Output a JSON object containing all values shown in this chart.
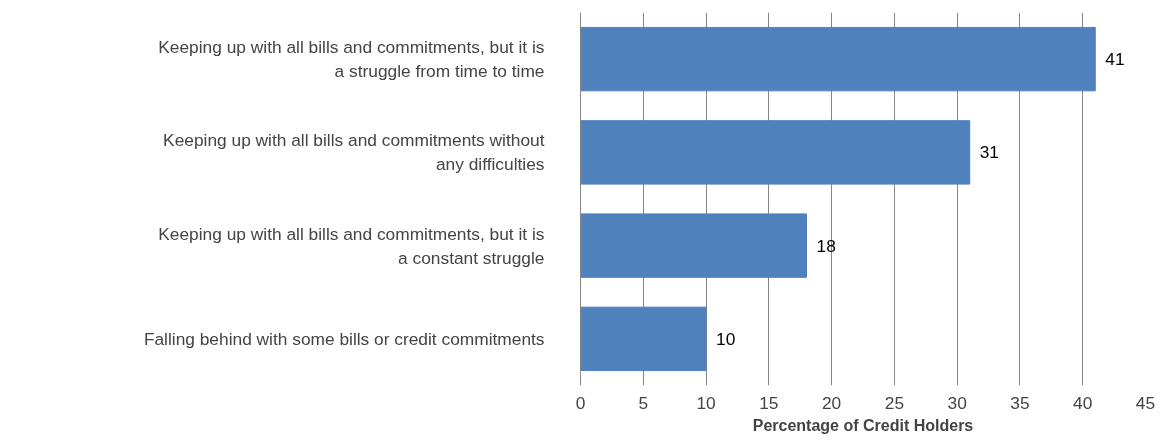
{
  "chart_data": {
    "type": "bar",
    "orientation": "horizontal",
    "xlabel": "Percentage of Credit Holders",
    "categories": [
      "Keeping up with all bills and commitments, but it is a struggle from time to time",
      "Keeping up with all bills and commitments without any difficulties",
      "Keeping up with all bills and commitments, but it is a constant struggle",
      "Falling behind with some bills or credit commitments"
    ],
    "values": [
      41,
      31,
      18,
      10
    ],
    "color": "#4f81bd",
    "xlim": [
      0,
      45
    ],
    "xticks": [
      0,
      5,
      10,
      15,
      20,
      25,
      30,
      35,
      40,
      45
    ],
    "grid": "x",
    "data_labels": true
  }
}
